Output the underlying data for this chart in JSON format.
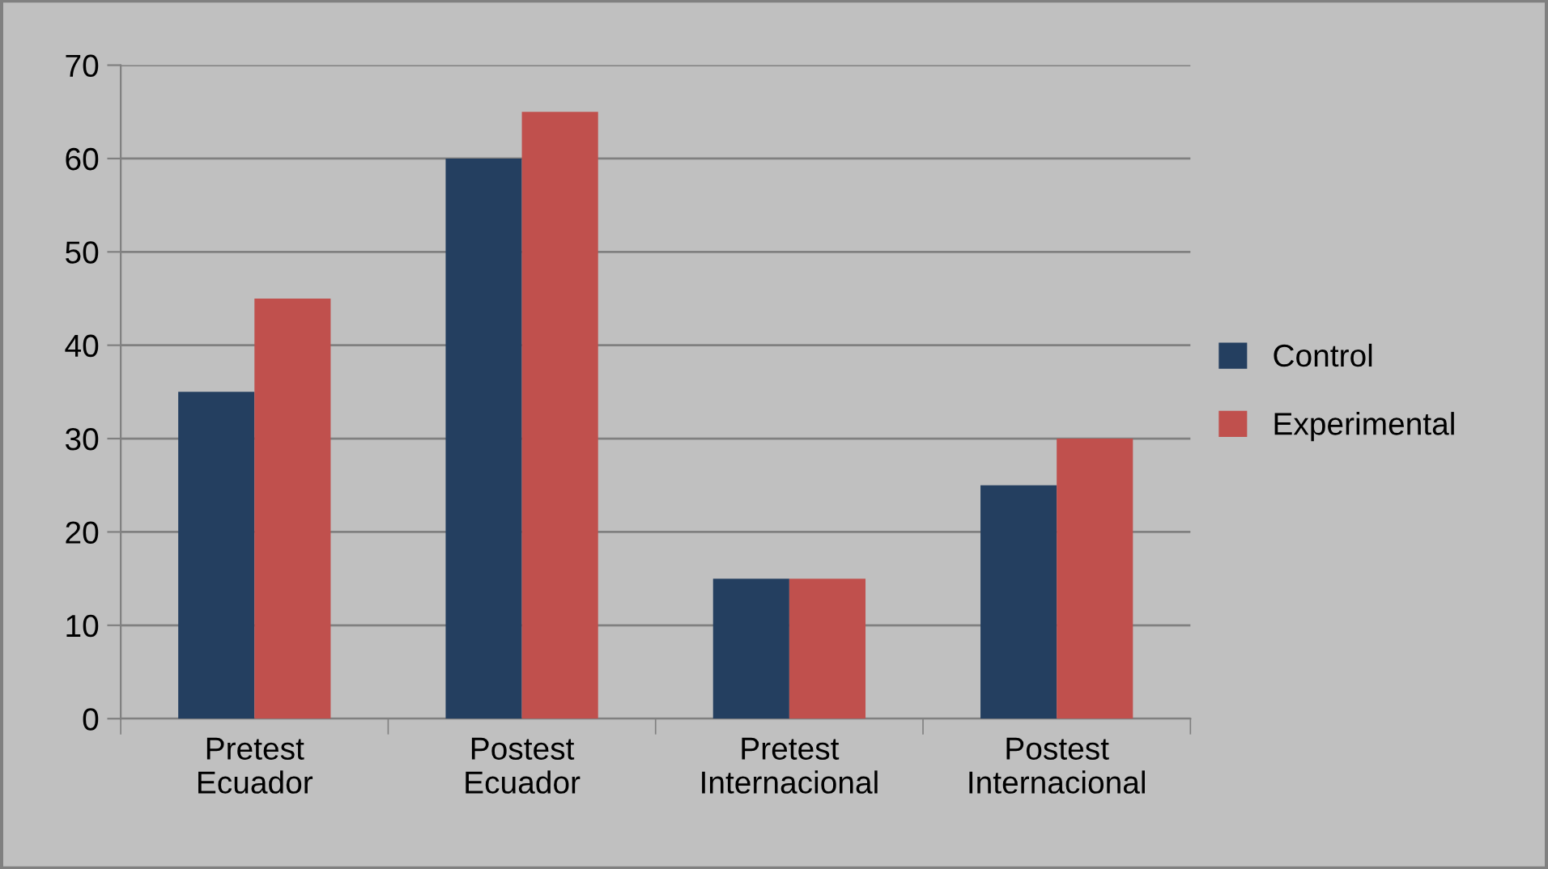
{
  "chart_data": {
    "type": "bar",
    "categories": [
      "Pretest\nEcuador",
      "Postest\nEcuador",
      "Pretest\nInternacional",
      "Postest\nInternacional"
    ],
    "series": [
      {
        "name": "Control",
        "color": "#243f60",
        "values": [
          35,
          60,
          15,
          25
        ]
      },
      {
        "name": "Experimental",
        "color": "#c0504d",
        "values": [
          45,
          65,
          15,
          30
        ]
      }
    ],
    "ylim": [
      0,
      70
    ],
    "yticks": [
      0,
      10,
      20,
      30,
      40,
      50,
      60,
      70
    ],
    "grid": "y",
    "legend": "right"
  }
}
